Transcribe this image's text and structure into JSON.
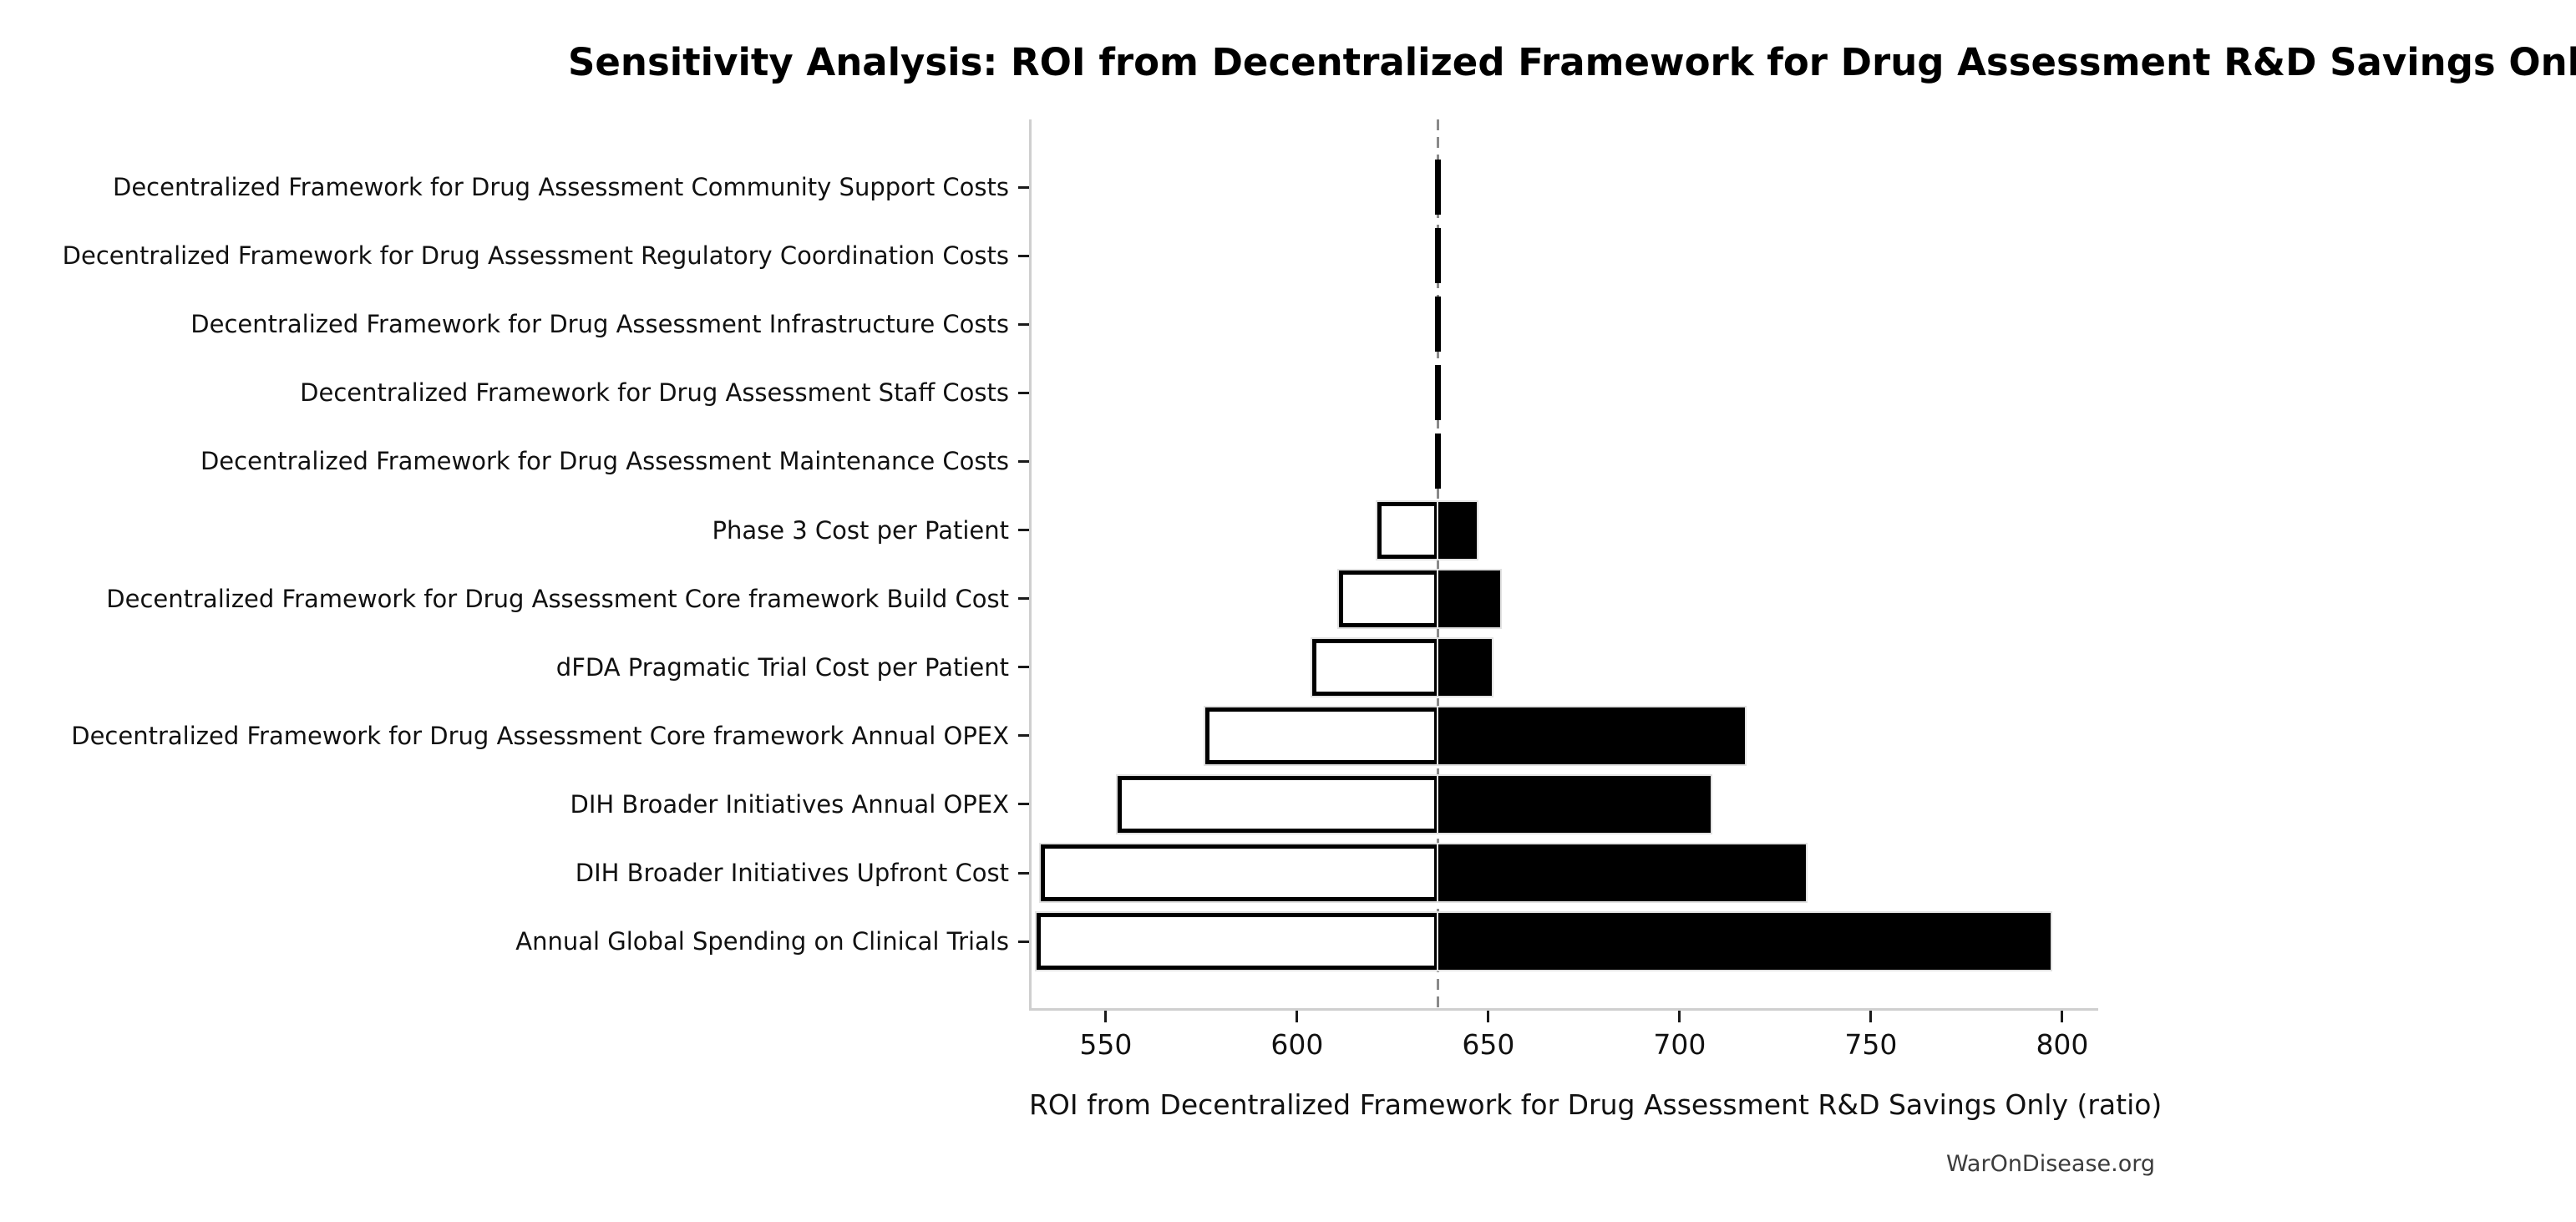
{
  "watermark": "WarOnDisease.org",
  "colors": {
    "low_fill": "#ffffff",
    "high_fill": "#000000",
    "bar_edge": "#000000",
    "baseline_line": "#8a8a8a",
    "spine": "#cfcfcf",
    "text": "#000000",
    "watermark_text": "#3c3c3c"
  },
  "chart_data": {
    "type": "bar",
    "variant": "tornado-sensitivity",
    "title": "Sensitivity Analysis: ROI from Decentralized Framework for Drug Assessment R&D Savings Only",
    "xlabel": "ROI from Decentralized Framework for Drug Assessment R&D Savings Only (ratio)",
    "ylabel": "",
    "grid": false,
    "legend_position": "none",
    "baseline": 636.9,
    "xlim": [
      530.6,
      809.4
    ],
    "xticks": [
      550,
      600,
      650,
      700,
      750,
      800
    ],
    "categories": [
      "Decentralized Framework for Drug Assessment Community Support Costs",
      "Decentralized Framework for Drug Assessment Regulatory Coordination Costs",
      "Decentralized Framework for Drug Assessment Infrastructure Costs",
      "Decentralized Framework for Drug Assessment Staff Costs",
      "Decentralized Framework for Drug Assessment Maintenance Costs",
      "Phase 3 Cost per Patient",
      "Decentralized Framework for Drug Assessment Core framework Build Cost",
      "dFDA Pragmatic Trial Cost per Patient",
      "Decentralized Framework for Drug Assessment Core framework Annual OPEX",
      "DIH Broader Initiatives Annual OPEX",
      "DIH Broader Initiatives Upfront Cost",
      "Annual Global Spending on Clinical Trials"
    ],
    "series": [
      {
        "name": "low_estimate_roi",
        "values": [
          636.6,
          636.5,
          636.4,
          636.3,
          636.2,
          621,
          611,
          604,
          576,
          553,
          533,
          532
        ]
      },
      {
        "name": "high_estimate_roi",
        "values": [
          637.2,
          637.3,
          637.4,
          637.5,
          637.6,
          647,
          653,
          651,
          717,
          708,
          733,
          797
        ]
      }
    ]
  }
}
